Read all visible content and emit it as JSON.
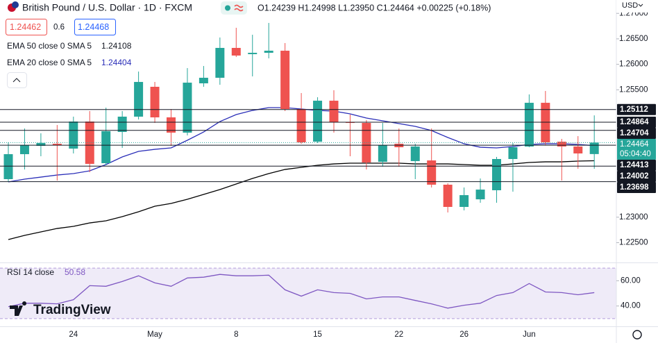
{
  "header": {
    "symbol": "British Pound / U.S. Dollar · 1D · FXCM",
    "ohlc": "O1.24239 H1.24998 L1.23950 C1.24464 +0.00225 (+0.18%)",
    "sell": "1.24462",
    "spread": "0.6",
    "buy": "1.24468",
    "currency": "USD",
    "logo": "TradingView"
  },
  "chart_data": [
    {
      "type": "candlestick",
      "categories": [
        null,
        null,
        null,
        null,
        "24",
        null,
        null,
        null,
        null,
        "May",
        null,
        null,
        null,
        null,
        "8",
        null,
        null,
        null,
        null,
        "15",
        null,
        null,
        null,
        null,
        "22",
        null,
        null,
        null,
        "26",
        null,
        null,
        null,
        "Jun",
        null,
        null,
        null,
        null
      ],
      "open": [
        1.23747,
        1.24237,
        1.24401,
        1.24441,
        1.24346,
        1.24877,
        1.2406,
        1.24673,
        1.24973,
        1.25559,
        1.24959,
        1.24659,
        1.25627,
        1.25736,
        1.26322,
        1.26199,
        1.26226,
        1.26267,
        1.25123,
        1.24482,
        1.25286,
        1.24864,
        1.2485,
        1.24087,
        1.24441,
        1.24101,
        1.24114,
        1.23638,
        1.23202,
        1.23351,
        1.23529,
        1.24142,
        1.24387,
        1.25245,
        1.24482,
        1.24387,
        1.24239
      ],
      "high": [
        1.24469,
        1.24741,
        1.24646,
        1.24809,
        1.24973,
        1.25082,
        1.2515,
        1.25082,
        1.25858,
        1.25654,
        1.25123,
        1.25926,
        1.25967,
        1.26526,
        1.26717,
        1.2658,
        1.26812,
        1.26417,
        1.25436,
        1.25354,
        1.2549,
        1.25014,
        1.24905,
        1.2485,
        1.24741,
        1.24441,
        1.24741,
        1.23665,
        1.23583,
        1.2376,
        1.24183,
        1.24455,
        1.25409,
        1.25477,
        1.24537,
        1.24591,
        1.24998
      ],
      "low": [
        1.23692,
        1.23937,
        1.24196,
        1.23719,
        1.24251,
        1.23883,
        1.2402,
        1.2436,
        1.24918,
        1.2485,
        1.244,
        1.24605,
        1.25559,
        1.25599,
        1.26144,
        1.25763,
        1.26117,
        1.25082,
        1.24441,
        1.24455,
        1.24659,
        1.24196,
        1.23937,
        1.23992,
        1.23992,
        1.23747,
        1.23583,
        1.23093,
        1.23134,
        1.23283,
        1.23283,
        1.23501,
        1.24373,
        1.24414,
        1.23719,
        1.23951,
        1.2395
      ],
      "close": [
        1.24237,
        1.24414,
        1.24455,
        1.24414,
        1.24877,
        1.24046,
        1.24687,
        1.24973,
        1.25654,
        1.24959,
        1.24659,
        1.2564,
        1.25736,
        1.26322,
        1.26172,
        1.26226,
        1.26267,
        1.25123,
        1.24469,
        1.25286,
        1.24864,
        1.2485,
        1.24074,
        1.24414,
        1.24373,
        1.24387,
        1.23638,
        1.23202,
        1.23433,
        1.23542,
        1.24142,
        1.24373,
        1.25245,
        1.24469,
        1.24387,
        1.24251,
        1.24464
      ],
      "up_color": "#26a69a",
      "down_color": "#ef5350",
      "series": [
        {
          "name": "EMA 50 close 0 SMA 5",
          "color": "#000000",
          "values": [
            1.22561,
            1.22643,
            1.22711,
            1.22779,
            1.2282,
            1.22888,
            1.22929,
            1.23011,
            1.23106,
            1.23215,
            1.2327,
            1.23351,
            1.23447,
            1.23542,
            1.23651,
            1.2376,
            1.23856,
            1.23937,
            1.23978,
            1.24019,
            1.24046,
            1.2406,
            1.2406,
            1.2406,
            1.2406,
            1.24046,
            1.24046,
            1.24046,
            1.24033,
            1.24019,
            1.24019,
            1.24046,
            1.24074,
            1.24087,
            1.24087,
            1.24101,
            1.24108
          ]
        },
        {
          "name": "EMA 20 close 0 SMA 5",
          "color": "#2a2eb8",
          "values": [
            1.23692,
            1.23747,
            1.23787,
            1.23828,
            1.23856,
            1.2391,
            1.24033,
            1.24183,
            1.24292,
            1.24332,
            1.2436,
            1.2451,
            1.24673,
            1.24877,
            1.25014,
            1.25095,
            1.2515,
            1.2515,
            1.25123,
            1.25095,
            1.25082,
            1.25027,
            1.24946,
            1.24891,
            1.24837,
            1.24782,
            1.247,
            1.24564,
            1.24441,
            1.24373,
            1.2436,
            1.24387,
            1.24428,
            1.24441,
            1.24441,
            1.24428,
            1.24404
          ]
        }
      ],
      "levels": [
        1.25112,
        1.24864,
        1.24704,
        1.24413,
        1.24002,
        1.23698
      ],
      "countdown": "05:04:40",
      "ylim": [
        1.22112,
        1.27262
      ],
      "yticks": [
        {
          "value": 1.225,
          "label": "1.22500"
        },
        {
          "value": 1.23,
          "label": "1.23000"
        },
        {
          "value": 1.255,
          "label": "1.25500"
        },
        {
          "value": 1.26,
          "label": "1.26000"
        },
        {
          "value": 1.265,
          "label": "1.26500"
        },
        {
          "value": 1.27,
          "label": "1.27000"
        }
      ]
    },
    {
      "type": "line",
      "series": [
        {
          "name": "RSI 14 close",
          "color": "#7e57c2",
          "values": [
            39.4,
            42.2,
            42.2,
            41.7,
            45,
            56.1,
            55.6,
            59.4,
            63.9,
            58.3,
            55.6,
            62.2,
            62.8,
            65,
            63.9,
            63.9,
            64.4,
            52.8,
            47.8,
            52.8,
            50.6,
            50,
            45.6,
            47.2,
            47.2,
            44.4,
            41.7,
            38.3,
            40.6,
            42.2,
            48.3,
            50.6,
            57.8,
            51.1,
            50.6,
            48.9,
            50.58
          ]
        }
      ],
      "band": [
        30,
        70
      ],
      "ylim": [
        23.9,
        73.9
      ],
      "yticks": [
        {
          "value": 60,
          "label": "60.00"
        },
        {
          "value": 40,
          "label": "40.00"
        }
      ]
    }
  ]
}
